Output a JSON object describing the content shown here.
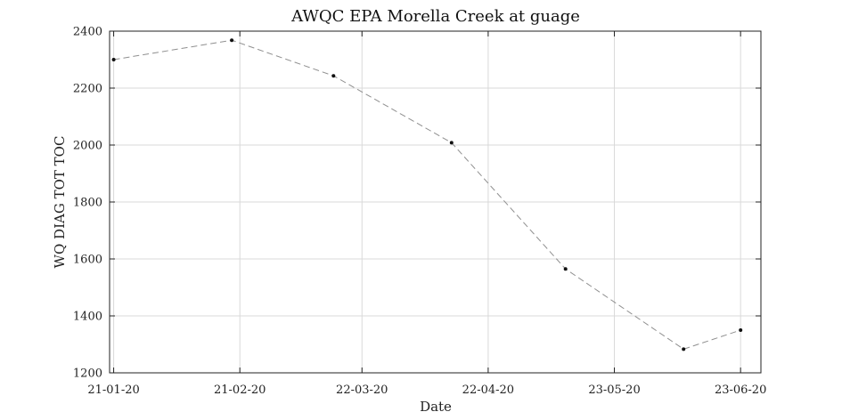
{
  "chart_data": {
    "type": "line",
    "title": "AWQC EPA Morella Creek at guage",
    "xlabel": "Date",
    "ylabel": "WQ DIAG TOT TOC",
    "x_axis_type": "date",
    "xlim": [
      "2020-01-20",
      "2020-06-28"
    ],
    "ylim": [
      1200,
      2400
    ],
    "x_ticks": [
      {
        "label": "21-01-20",
        "value": "2020-01-21"
      },
      {
        "label": "21-02-20",
        "value": "2020-02-21"
      },
      {
        "label": "22-03-20",
        "value": "2020-03-22"
      },
      {
        "label": "22-04-20",
        "value": "2020-04-22"
      },
      {
        "label": "23-05-20",
        "value": "2020-05-23"
      },
      {
        "label": "23-06-20",
        "value": "2020-06-23"
      }
    ],
    "y_ticks": [
      1200,
      1400,
      1600,
      1800,
      2000,
      2200,
      2400
    ],
    "grid": true,
    "legend": "none",
    "series": [
      {
        "x": [
          "2020-01-21",
          "2020-02-19",
          "2020-03-15",
          "2020-04-13",
          "2020-05-11",
          "2020-06-09",
          "2020-06-23"
        ],
        "y": [
          2300,
          2368,
          2243,
          2008,
          1565,
          1283,
          1350
        ],
        "line_color": "#8f8f8f",
        "marker_color": "#111111",
        "line_style": "dashed"
      }
    ]
  }
}
